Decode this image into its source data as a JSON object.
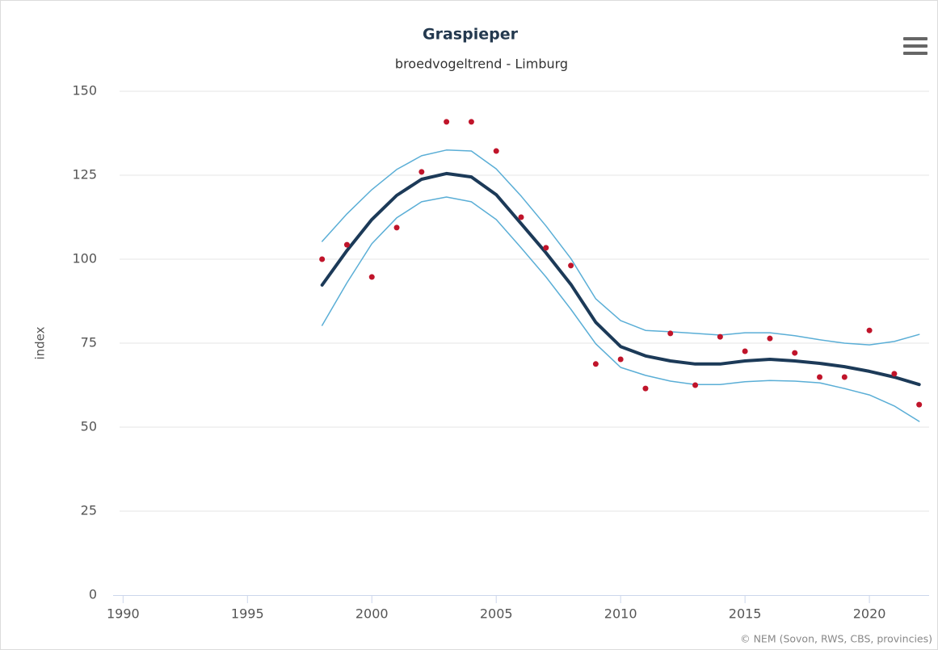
{
  "chart_data": {
    "type": "line",
    "title": "Graspieper",
    "subtitle": "broedvogeltrend - Limburg",
    "y_label": "index",
    "credits": "© NEM (Sovon, RWS, CBS, provincies)",
    "x": [
      1998,
      1999,
      2000,
      2001,
      2002,
      2003,
      2004,
      2005,
      2006,
      2007,
      2008,
      2009,
      2010,
      2011,
      2012,
      2013,
      2014,
      2015,
      2016,
      2017,
      2018,
      2019,
      2020,
      2021,
      2022
    ],
    "xlim": [
      1989.6,
      2022.4
    ],
    "xticks": [
      1990,
      1995,
      2000,
      2005,
      2010,
      2015,
      2020
    ],
    "ylim": [
      0,
      150
    ],
    "yticks": [
      0,
      25,
      50,
      75,
      100,
      125,
      150
    ],
    "grid": true,
    "series": [
      {
        "type": "line",
        "color": "#5aaed6",
        "width": 1.5,
        "values": [
          105.3,
          113.5,
          120.7,
          126.7,
          130.8,
          132.5,
          132.2,
          126.9,
          118.8,
          109.9,
          100.2,
          88.2,
          81.7,
          78.8,
          78.4,
          77.9,
          77.4,
          78.1,
          78.1,
          77.2,
          76,
          75,
          74.5,
          75.5,
          77.6
        ]
      },
      {
        "type": "line",
        "color": "#5aaed6",
        "width": 1.5,
        "values": [
          80.3,
          93,
          104.6,
          112.3,
          117.1,
          118.5,
          117.1,
          111.8,
          103.4,
          94.7,
          85.1,
          74.8,
          67.8,
          65.4,
          63.7,
          62.7,
          62.7,
          63.5,
          63.9,
          63.7,
          63.2,
          61.5,
          59.6,
          56.3,
          51.7
        ]
      },
      {
        "type": "line",
        "color": "#1c3a58",
        "width": 4,
        "values": [
          92.3,
          102.6,
          111.8,
          119,
          123.8,
          125.5,
          124.5,
          119.2,
          110.6,
          101.9,
          92.5,
          81.2,
          74,
          71.2,
          69.7,
          68.8,
          68.8,
          69.7,
          70.2,
          69.7,
          69,
          68,
          66.6,
          64.9,
          62.7
        ]
      },
      {
        "type": "scatter",
        "color": "#c0142a",
        "values": [
          100,
          104.3,
          94.7,
          109.4,
          126,
          140.9,
          140.9,
          132.2,
          112.5,
          103.4,
          98.1,
          68.8,
          70.2,
          61.5,
          77.9,
          62.5,
          76.9,
          72.6,
          76.4,
          72.1,
          64.9,
          64.9,
          78.8,
          65.9,
          56.7
        ]
      }
    ]
  }
}
